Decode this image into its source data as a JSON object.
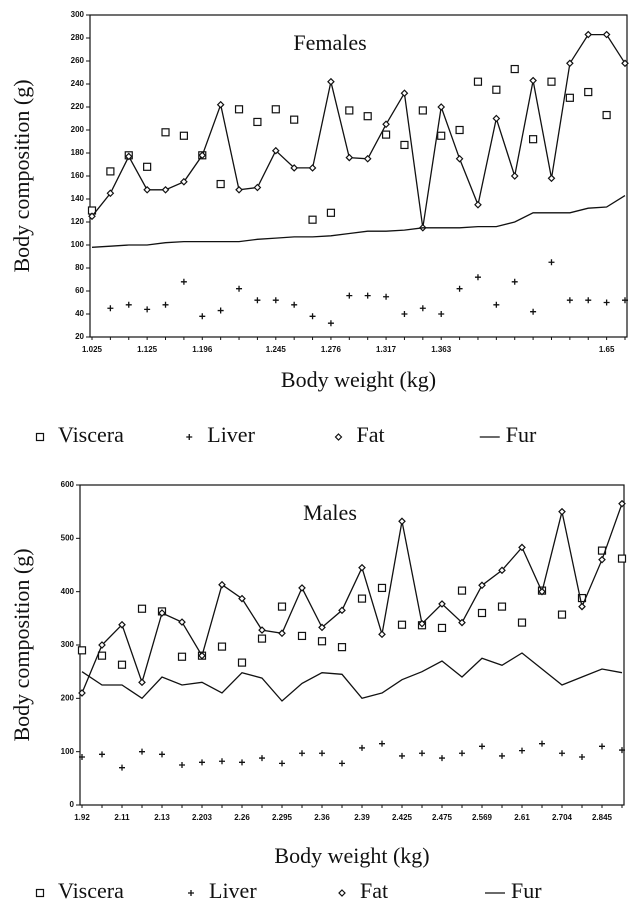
{
  "chart_data": [
    {
      "type": "line",
      "title": "Females",
      "ylabel": "Body composition (g)",
      "xlabel": "Body weight (kg)",
      "categories": [
        "1.025",
        null,
        null,
        "1.125",
        null,
        null,
        "1.196",
        null,
        null,
        null,
        "1.245",
        null,
        null,
        "1.276",
        null,
        null,
        "1.317",
        null,
        null,
        "1.363",
        null,
        null,
        null,
        null,
        null,
        null,
        null,
        null,
        "1.65",
        null
      ],
      "ylim": [
        20,
        300
      ],
      "yticks": [
        20,
        40,
        60,
        80,
        100,
        120,
        140,
        160,
        180,
        200,
        220,
        240,
        260,
        280,
        300
      ],
      "series": [
        {
          "name": "Viscera",
          "color": "#111",
          "marker": "square",
          "line": false,
          "values": [
            130,
            164,
            178,
            168,
            198,
            195,
            178,
            153,
            218,
            207,
            218,
            209,
            122,
            128,
            217,
            212,
            196,
            187,
            217,
            195,
            200,
            242,
            235,
            253,
            192,
            242,
            228,
            233,
            213,
            null
          ]
        },
        {
          "name": "Liver",
          "color": "#111",
          "marker": "plus",
          "line": false,
          "values": [
            null,
            45,
            48,
            44,
            48,
            68,
            38,
            43,
            62,
            52,
            52,
            48,
            38,
            32,
            56,
            56,
            55,
            40,
            45,
            40,
            62,
            72,
            48,
            68,
            42,
            85,
            52,
            52,
            50,
            52
          ]
        },
        {
          "name": "Fat",
          "color": "#111",
          "marker": "diamond",
          "line": true,
          "values": [
            125,
            145,
            177,
            148,
            148,
            155,
            178,
            222,
            148,
            150,
            182,
            167,
            167,
            242,
            176,
            175,
            205,
            232,
            115,
            220,
            175,
            135,
            210,
            160,
            243,
            158,
            258,
            283,
            283,
            258
          ]
        },
        {
          "name": "Fur",
          "color": "#111",
          "marker": "none",
          "line": true,
          "values": [
            98,
            99,
            100,
            100,
            102,
            103,
            103,
            103,
            103,
            105,
            106,
            107,
            107,
            108,
            110,
            112,
            112,
            113,
            115,
            115,
            115,
            116,
            116,
            120,
            128,
            128,
            128,
            132,
            133,
            143
          ]
        }
      ]
    },
    {
      "type": "line",
      "title": "Males",
      "ylabel": "Body composition (g)",
      "xlabel": "Body weight (kg)",
      "categories": [
        "1.92",
        null,
        "2.11",
        null,
        "2.13",
        null,
        "2.203",
        null,
        "2.26",
        null,
        "2.295",
        null,
        "2.36",
        null,
        "2.39",
        null,
        "2.425",
        null,
        "2.475",
        null,
        "2.569",
        null,
        "2.61",
        null,
        "2.704",
        null,
        "2.845",
        null
      ],
      "ylim": [
        0,
        600
      ],
      "yticks": [
        0,
        100,
        200,
        300,
        400,
        500,
        600
      ],
      "series": [
        {
          "name": "Viscera",
          "color": "#111",
          "marker": "square",
          "line": false,
          "values": [
            290,
            280,
            263,
            368,
            363,
            278,
            280,
            297,
            267,
            312,
            372,
            317,
            307,
            296,
            387,
            407,
            338,
            337,
            332,
            402,
            360,
            372,
            342,
            402,
            357,
            388,
            477,
            462
          ]
        },
        {
          "name": "Liver",
          "color": "#111",
          "marker": "plus",
          "line": false,
          "values": [
            90,
            95,
            70,
            100,
            95,
            75,
            80,
            82,
            80,
            88,
            78,
            97,
            97,
            78,
            107,
            115,
            92,
            97,
            88,
            97,
            110,
            92,
            102,
            115,
            97,
            90,
            110,
            103
          ]
        },
        {
          "name": "Fat",
          "color": "#111",
          "marker": "diamond",
          "line": true,
          "values": [
            210,
            300,
            338,
            230,
            360,
            343,
            280,
            413,
            387,
            328,
            322,
            407,
            333,
            365,
            445,
            320,
            532,
            340,
            377,
            342,
            412,
            440,
            483,
            400,
            550,
            372,
            460,
            565
          ]
        },
        {
          "name": "Fur",
          "color": "#111",
          "marker": "none",
          "line": true,
          "values": [
            250,
            225,
            225,
            200,
            240,
            225,
            230,
            210,
            248,
            238,
            195,
            228,
            248,
            245,
            200,
            210,
            235,
            250,
            270,
            240,
            275,
            262,
            285,
            255,
            225,
            240,
            255,
            248
          ]
        }
      ]
    }
  ]
}
